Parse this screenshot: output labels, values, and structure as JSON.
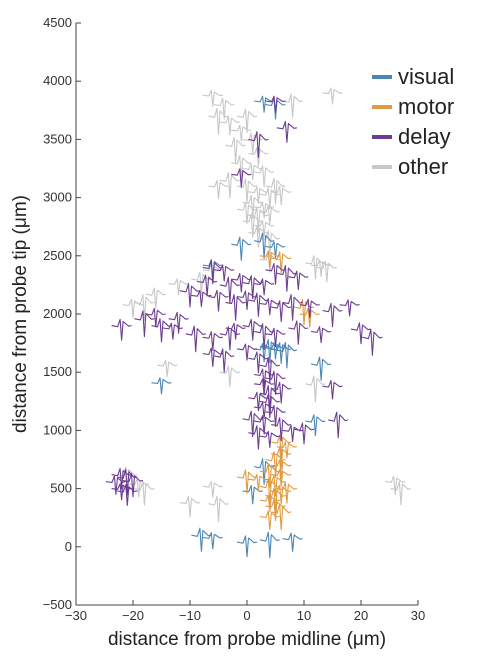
{
  "chart_data": {
    "type": "scatter",
    "title": "",
    "xlabel": "distance from probe midline (μm)",
    "ylabel": "distance from probe tip (μm)",
    "xlim": [
      -30,
      30
    ],
    "ylim": [
      -500,
      4500
    ],
    "xticks": [
      -30,
      -20,
      -10,
      0,
      10,
      20,
      30
    ],
    "yticks": [
      -500,
      0,
      500,
      1000,
      1500,
      2000,
      2500,
      3000,
      3500,
      4000,
      4500
    ],
    "grid": false,
    "legend": "top-right",
    "marker": "waveform",
    "series": [
      {
        "name": "visual",
        "color": "#4a86b4",
        "points": [
          [
            3,
            3830
          ],
          [
            5,
            3800
          ],
          [
            3,
            2630
          ],
          [
            -6,
            2420
          ],
          [
            4,
            1720
          ],
          [
            5,
            1710
          ],
          [
            6,
            1700
          ],
          [
            7,
            1690
          ],
          [
            3,
            1700
          ],
          [
            13,
            1570
          ],
          [
            -15,
            1410
          ],
          [
            12,
            1080
          ],
          [
            3,
            690
          ],
          [
            1,
            480
          ],
          [
            -8,
            100
          ],
          [
            -6,
            80
          ],
          [
            0,
            40
          ],
          [
            4,
            60
          ],
          [
            8,
            70
          ],
          [
            -1,
            2600
          ],
          [
            5,
            2580
          ]
        ]
      },
      {
        "name": "motor",
        "color": "#e09a3f",
        "points": [
          [
            4,
            2500
          ],
          [
            6,
            2480
          ],
          [
            10,
            2060
          ],
          [
            11,
            2000
          ],
          [
            6,
            900
          ],
          [
            7,
            860
          ],
          [
            6,
            800
          ],
          [
            5,
            750
          ],
          [
            6,
            700
          ],
          [
            4,
            650
          ],
          [
            6,
            620
          ],
          [
            5,
            560
          ],
          [
            4,
            520
          ],
          [
            6,
            480
          ],
          [
            5,
            440
          ],
          [
            4,
            400
          ],
          [
            5,
            350
          ],
          [
            6,
            300
          ],
          [
            4,
            260
          ],
          [
            0,
            600
          ],
          [
            2,
            580
          ],
          [
            7,
            500
          ]
        ]
      },
      {
        "name": "delay",
        "color": "#6b3d8f",
        "points": [
          [
            5,
            3830
          ],
          [
            7,
            3600
          ],
          [
            2,
            3500
          ],
          [
            -1,
            3200
          ],
          [
            -6,
            2400
          ],
          [
            -4,
            2380
          ],
          [
            -7,
            2280
          ],
          [
            -3,
            2250
          ],
          [
            -1,
            2300
          ],
          [
            1,
            2270
          ],
          [
            3,
            2260
          ],
          [
            5,
            2380
          ],
          [
            7,
            2350
          ],
          [
            9,
            2320
          ],
          [
            -10,
            2200
          ],
          [
            -8,
            2160
          ],
          [
            -5,
            2150
          ],
          [
            -2,
            2100
          ],
          [
            0,
            2150
          ],
          [
            2,
            2120
          ],
          [
            4,
            2090
          ],
          [
            6,
            2060
          ],
          [
            8,
            2100
          ],
          [
            11,
            2080
          ],
          [
            15,
            2030
          ],
          [
            18,
            2080
          ],
          [
            -22,
            1900
          ],
          [
            -18,
            1960
          ],
          [
            -16,
            2000
          ],
          [
            -15,
            1900
          ],
          [
            -13,
            1880
          ],
          [
            -12,
            1960
          ],
          [
            -9,
            1830
          ],
          [
            -6,
            1800
          ],
          [
            -3,
            1830
          ],
          [
            -2,
            1880
          ],
          [
            1,
            1900
          ],
          [
            3,
            1850
          ],
          [
            5,
            1830
          ],
          [
            9,
            1880
          ],
          [
            13,
            1850
          ],
          [
            20,
            1870
          ],
          [
            22,
            1800
          ],
          [
            -6,
            1660
          ],
          [
            -4,
            1640
          ],
          [
            0,
            1700
          ],
          [
            2,
            1620
          ],
          [
            4,
            1560
          ],
          [
            3,
            1480
          ],
          [
            5,
            1450
          ],
          [
            3,
            1400
          ],
          [
            6,
            1360
          ],
          [
            4,
            1320
          ],
          [
            2,
            1280
          ],
          [
            4,
            1250
          ],
          [
            3,
            1200
          ],
          [
            5,
            1160
          ],
          [
            1,
            1100
          ],
          [
            3,
            1080
          ],
          [
            6,
            1050
          ],
          [
            8,
            1000
          ],
          [
            10,
            1010
          ],
          [
            16,
            1090
          ],
          [
            15,
            1380
          ],
          [
            2,
            980
          ],
          [
            4,
            950
          ],
          [
            -22,
            620
          ],
          [
            -21,
            600
          ],
          [
            -23,
            560
          ],
          [
            -20,
            570
          ],
          [
            -22,
            500
          ],
          [
            -21,
            480
          ]
        ]
      },
      {
        "name": "other",
        "color": "#c7c7c7",
        "points": [
          [
            -6,
            3880
          ],
          [
            -4,
            3800
          ],
          [
            -5,
            3700
          ],
          [
            -3,
            3650
          ],
          [
            0,
            3700
          ],
          [
            -1,
            3580
          ],
          [
            1,
            3500
          ],
          [
            -2,
            3450
          ],
          [
            2,
            3380
          ],
          [
            -1,
            3300
          ],
          [
            1,
            3250
          ],
          [
            3,
            3220
          ],
          [
            -3,
            3150
          ],
          [
            -5,
            3100
          ],
          [
            0,
            3100
          ],
          [
            2,
            3050
          ],
          [
            4,
            3030
          ],
          [
            5,
            3100
          ],
          [
            6,
            3050
          ],
          [
            1,
            2960
          ],
          [
            3,
            2920
          ],
          [
            0,
            2900
          ],
          [
            2,
            2850
          ],
          [
            4,
            2880
          ],
          [
            1,
            2800
          ],
          [
            3,
            2760
          ],
          [
            2,
            2700
          ],
          [
            4,
            2650
          ],
          [
            -6,
            2380
          ],
          [
            -8,
            2300
          ],
          [
            -12,
            2260
          ],
          [
            -16,
            2170
          ],
          [
            -18,
            2100
          ],
          [
            -20,
            2080
          ],
          [
            12,
            2440
          ],
          [
            13,
            2420
          ],
          [
            14,
            2400
          ],
          [
            -21,
            620
          ],
          [
            -19,
            540
          ],
          [
            -18,
            500
          ],
          [
            -6,
            520
          ],
          [
            -10,
            380
          ],
          [
            -5,
            370
          ],
          [
            26,
            560
          ],
          [
            27,
            500
          ],
          [
            -14,
            1560
          ],
          [
            -3,
            1500
          ],
          [
            12,
            1400
          ],
          [
            4,
            2470
          ],
          [
            8,
            3830
          ],
          [
            15,
            3900
          ]
        ]
      }
    ]
  }
}
